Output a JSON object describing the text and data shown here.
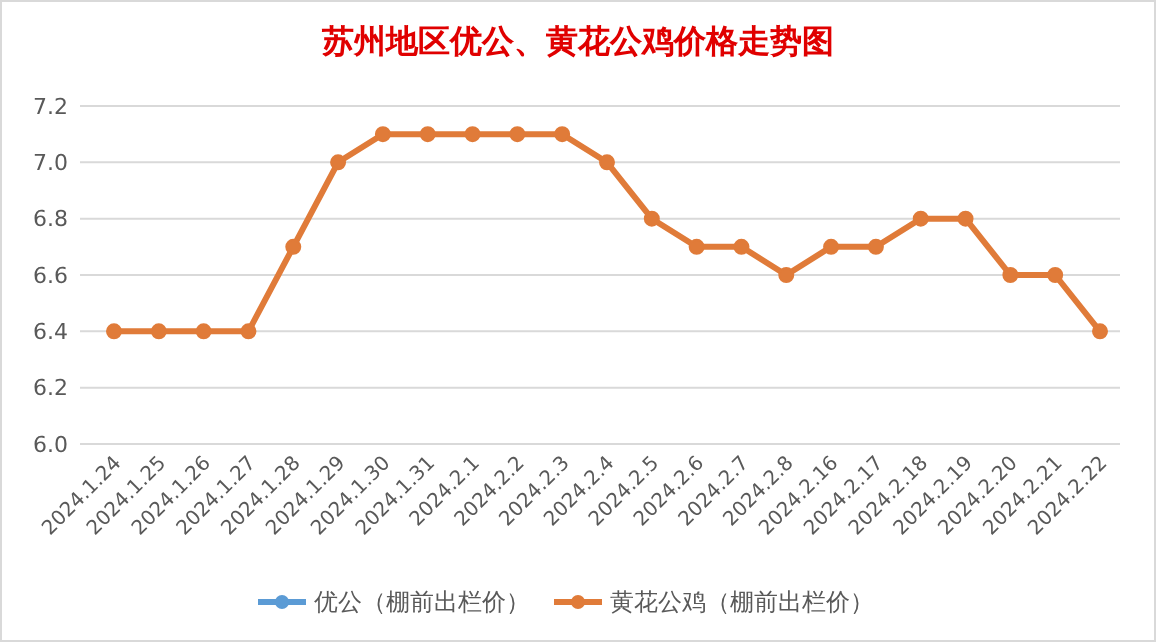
{
  "chart_data": {
    "type": "line",
    "title": "苏州地区优公、黄花公鸡价格走势图",
    "categories": [
      "2024.1.24",
      "2024.1.25",
      "2024.1.26",
      "2024.1.27",
      "2024.1.28",
      "2024.1.29",
      "2024.1.30",
      "2024.1.31",
      "2024.2.1",
      "2024.2.2",
      "2024.2.3",
      "2024.2.4",
      "2024.2.5",
      "2024.2.6",
      "2024.2.7",
      "2024.2.8",
      "2024.2.16",
      "2024.2.17",
      "2024.2.18",
      "2024.2.19",
      "2024.2.20",
      "2024.2.21",
      "2024.2.22"
    ],
    "series": [
      {
        "name": "优公（棚前出栏价）",
        "color": "#5b9bd5",
        "values": [
          null,
          null,
          null,
          null,
          null,
          null,
          null,
          null,
          null,
          null,
          null,
          null,
          null,
          null,
          null,
          null,
          null,
          null,
          null,
          null,
          null,
          null,
          null
        ]
      },
      {
        "name": "黄花公鸡（棚前出栏价）",
        "color": "#e07b39",
        "values": [
          6.4,
          6.4,
          6.4,
          6.4,
          6.7,
          7.0,
          7.1,
          7.1,
          7.1,
          7.1,
          7.1,
          7.0,
          6.8,
          6.7,
          6.7,
          6.6,
          6.7,
          6.7,
          6.8,
          6.8,
          6.6,
          6.6,
          6.4
        ]
      }
    ],
    "ylim": [
      6.0,
      7.2
    ],
    "yticks": [
      {
        "value": 6.0,
        "label": "6.0"
      },
      {
        "value": 6.2,
        "label": "6.2"
      },
      {
        "value": 6.4,
        "label": "6.4"
      },
      {
        "value": 6.6,
        "label": "6.6"
      },
      {
        "value": 6.8,
        "label": "6.8"
      },
      {
        "value": 7.0,
        "label": "7.0"
      },
      {
        "value": 7.2,
        "label": "7.2"
      }
    ],
    "grid": "y",
    "legend": "bottom",
    "marker": "circle",
    "line_style": "solid"
  }
}
